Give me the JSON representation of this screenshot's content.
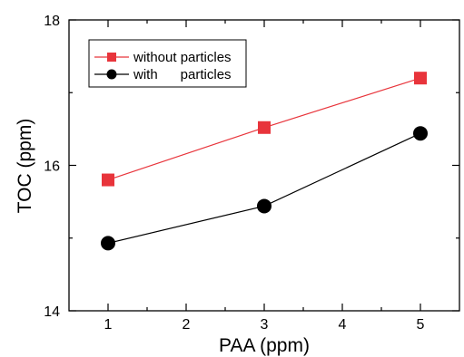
{
  "chart_data": {
    "type": "line",
    "xlabel": "PAA (ppm)",
    "ylabel": "TOC (ppm)",
    "xlim": [
      0.5,
      5.5
    ],
    "ylim": [
      14,
      18
    ],
    "x_ticks": [
      "1",
      "2",
      "3",
      "4",
      "5"
    ],
    "y_ticks": [
      "14",
      "16",
      "18"
    ],
    "legend_position": "top-left",
    "grid": false,
    "series": [
      {
        "name": "without particles",
        "x": [
          1,
          3,
          5
        ],
        "y": [
          15.8,
          16.52,
          17.2
        ],
        "marker": "square",
        "color": "#e8343b",
        "line_color": "#e8343b"
      },
      {
        "name": "with      particles",
        "x": [
          1,
          3,
          5
        ],
        "y": [
          14.93,
          15.44,
          16.44
        ],
        "marker": "circle",
        "color": "#000000",
        "line_color": "#000000"
      }
    ]
  }
}
